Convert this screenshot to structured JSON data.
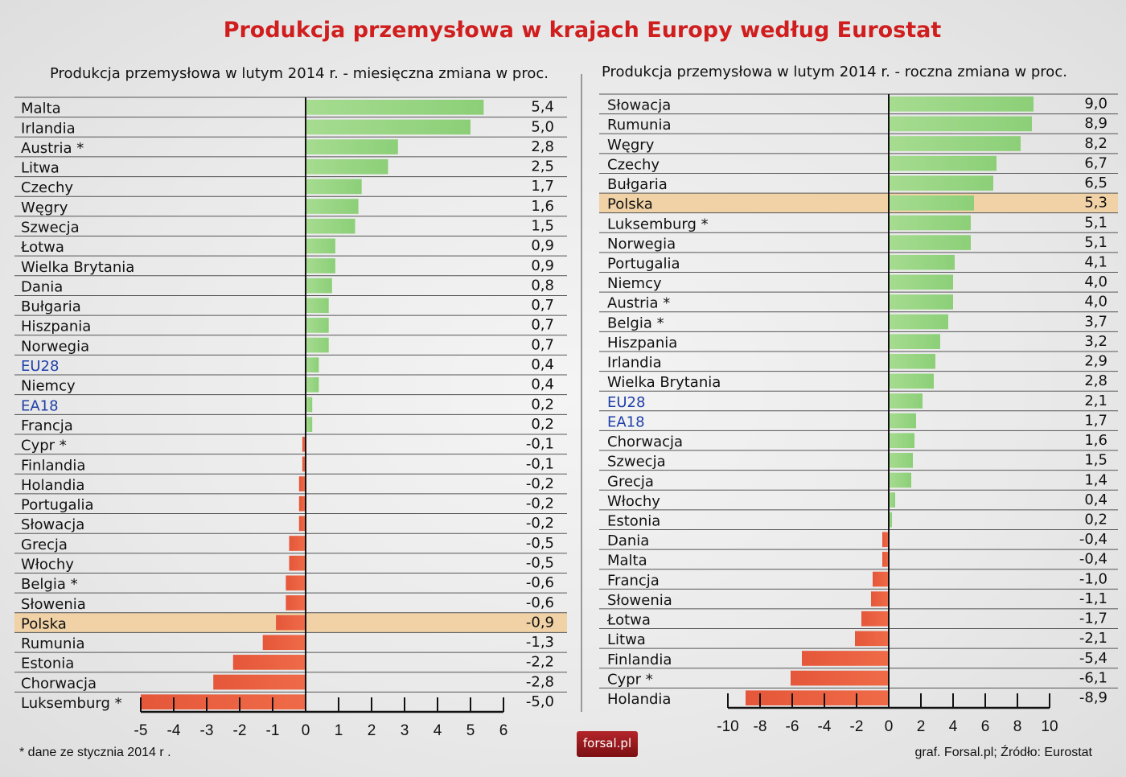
{
  "title": "Produkcja przemysłowa w krajach Europy według Eurostat",
  "colors": {
    "positive": "#8ccf78",
    "negative": "#e5573a",
    "highlight": "#f0d2a6",
    "aggregate_label": "#1f3fa8",
    "title": "#d01e1e"
  },
  "footnote": "* dane ze stycznia 2014 r .",
  "source": "graf. Forsal.pl; Źródło: Eurostat",
  "logo_text": "forsal.pl",
  "chart_data": [
    {
      "type": "bar",
      "orientation": "horizontal",
      "title": "Produkcja przemysłowa w lutym 2014 r. - miesięczna zmiana w proc.",
      "categories": [
        "Malta",
        "Irlandia",
        "Austria *",
        "Litwa",
        "Czechy",
        "Węgry",
        "Szwecja",
        "Łotwa",
        "Wielka Brytania",
        "Dania",
        "Bułgaria",
        "Hiszpania",
        "Norwegia",
        "EU28",
        "Niemcy",
        "EA18",
        "Francja",
        "Cypr *",
        "Finlandia",
        "Holandia",
        "Portugalia",
        "Słowacja",
        "Grecja",
        "Włochy",
        "Belgia *",
        "Słowenia",
        "Polska",
        "Rumunia",
        "Estonia",
        "Chorwacja",
        "Luksemburg *"
      ],
      "values": [
        5.4,
        5.0,
        2.8,
        2.5,
        1.7,
        1.6,
        1.5,
        0.9,
        0.9,
        0.8,
        0.7,
        0.7,
        0.7,
        0.4,
        0.4,
        0.2,
        0.2,
        -0.1,
        -0.1,
        -0.2,
        -0.2,
        -0.2,
        -0.5,
        -0.5,
        -0.6,
        -0.6,
        -0.9,
        -1.3,
        -2.2,
        -2.8,
        -5.0
      ],
      "value_labels": [
        "5,4",
        "5,0",
        "2,8",
        "2,5",
        "1,7",
        "1,6",
        "1,5",
        "0,9",
        "0,9",
        "0,8",
        "0,7",
        "0,7",
        "0,7",
        "0,4",
        "0,4",
        "0,2",
        "0,2",
        "-0,1",
        "-0,1",
        "-0,2",
        "-0,2",
        "-0,2",
        "-0,5",
        "-0,5",
        "-0,6",
        "-0,6",
        "-0,9",
        "-1,3",
        "-2,2",
        "-2,8",
        "-5,0"
      ],
      "highlighted": "Polska",
      "aggregates": [
        "EU28",
        "EA18"
      ],
      "xlim": [
        -5,
        6
      ],
      "xticks": [
        "-5",
        "-4",
        "-3",
        "-2",
        "-1",
        "0",
        "1",
        "2",
        "3",
        "4",
        "5",
        "6"
      ]
    },
    {
      "type": "bar",
      "orientation": "horizontal",
      "title": "Produkcja przemysłowa w lutym 2014 r. - roczna zmiana w proc.",
      "categories": [
        "Słowacja",
        "Rumunia",
        "Węgry",
        "Czechy",
        "Bułgaria",
        "Polska",
        "Luksemburg *",
        "Norwegia",
        "Portugalia",
        "Niemcy",
        "Austria *",
        "Belgia *",
        "Hiszpania",
        "Irlandia",
        "Wielka Brytania",
        "EU28",
        "EA18",
        "Chorwacja",
        "Szwecja",
        "Grecja",
        "Włochy",
        "Estonia",
        "Dania",
        "Malta",
        "Francja",
        "Słowenia",
        "Łotwa",
        "Litwa",
        "Finlandia",
        "Cypr *",
        "Holandia"
      ],
      "values": [
        9.0,
        8.9,
        8.2,
        6.7,
        6.5,
        5.3,
        5.1,
        5.1,
        4.1,
        4.0,
        4.0,
        3.7,
        3.2,
        2.9,
        2.8,
        2.1,
        1.7,
        1.6,
        1.5,
        1.4,
        0.4,
        0.2,
        -0.4,
        -0.4,
        -1.0,
        -1.1,
        -1.7,
        -2.1,
        -5.4,
        -6.1,
        -8.9
      ],
      "value_labels": [
        "9,0",
        "8,9",
        "8,2",
        "6,7",
        "6,5",
        "5,3",
        "5,1",
        "5,1",
        "4,1",
        "4,0",
        "4,0",
        "3,7",
        "3,2",
        "2,9",
        "2,8",
        "2,1",
        "1,7",
        "1,6",
        "1,5",
        "1,4",
        "0,4",
        "0,2",
        "-0,4",
        "-0,4",
        "-1,0",
        "-1,1",
        "-1,7",
        "-2,1",
        "-5,4",
        "-6,1",
        "-8,9"
      ],
      "highlighted": "Polska",
      "aggregates": [
        "EU28",
        "EA18"
      ],
      "xlim": [
        -10,
        10
      ],
      "xticks": [
        "-10",
        "-8",
        "-6",
        "-4",
        "-2",
        "0",
        "2",
        "4",
        "6",
        "8",
        "10"
      ]
    }
  ]
}
